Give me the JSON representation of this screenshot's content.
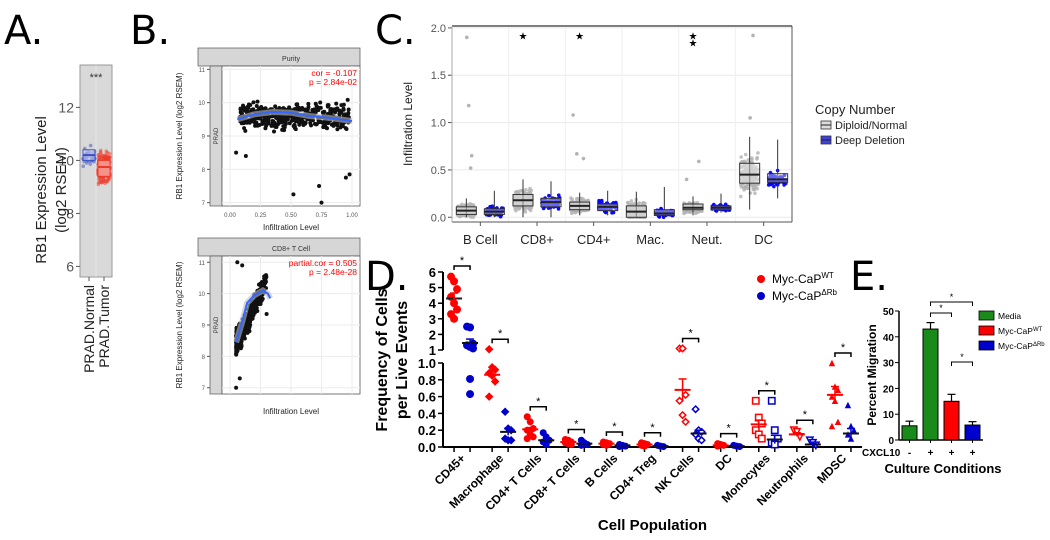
{
  "figure": {
    "panel_labels": [
      "A.",
      "B.",
      "C.",
      "D.",
      "E."
    ]
  },
  "chart_data": [
    {
      "id": "A",
      "type": "box",
      "title": "",
      "ylabel_lines": [
        "RB1 Expression Level",
        "(log2 RSEM)"
      ],
      "categories": [
        "PRAD.Normal",
        "PRAD.Tumor"
      ],
      "colors": [
        "#3b4fc4",
        "#ee3a2a"
      ],
      "ylim": [
        5.6,
        13.6
      ],
      "yticks": [
        6,
        8,
        10,
        12
      ],
      "significance": "***",
      "boxes": [
        {
          "name": "PRAD.Normal",
          "q1": 10.0,
          "median": 10.2,
          "q3": 10.4,
          "min": 9.4,
          "max": 10.9
        },
        {
          "name": "PRAD.Tumor",
          "q1": 9.4,
          "median": 9.75,
          "q3": 10.0,
          "min": 7.0,
          "max": 11.0
        }
      ],
      "background": "#d9d9d9"
    },
    {
      "id": "B-top",
      "type": "scatter",
      "strip_title": "Purity",
      "side_strip": "PRAD",
      "ylabel": "RB1 Expression Level (log2 RSEM)",
      "xlabel": "Infiltration Level",
      "xlim": [
        0,
        1
      ],
      "ylim": [
        6.9,
        11.1
      ],
      "xticks": [
        0.0,
        0.25,
        0.5,
        0.75,
        1.0
      ],
      "xtick_labels": [
        "0.00",
        "0.25",
        "0.50",
        "0.75",
        "1.00"
      ],
      "yticks": [
        7,
        8,
        9,
        10,
        11
      ],
      "annotation": [
        "cor = -0.107",
        "p = 2.84e-02"
      ],
      "annotation_color": "#ff0000",
      "fit_color": "#3366ff",
      "fit_curve": [
        [
          0.06,
          9.5
        ],
        [
          0.2,
          9.65
        ],
        [
          0.35,
          9.72
        ],
        [
          0.5,
          9.7
        ],
        [
          0.65,
          9.6
        ],
        [
          0.8,
          9.55
        ],
        [
          1.0,
          9.45
        ]
      ]
    },
    {
      "id": "B-bottom",
      "type": "scatter",
      "strip_title": "CD8+ T Cell",
      "side_strip": "PRAD",
      "ylabel": "RB1 Expression Level (log2 RSEM)",
      "xlabel": "Infiltration Level",
      "xlim": [
        0,
        1
      ],
      "ylim": [
        6.8,
        11.2
      ],
      "yticks": [
        7,
        8,
        9,
        10,
        11
      ],
      "annotation": [
        "partial.cor = 0.505",
        "p = 2.48e-28"
      ],
      "annotation_color": "#ff0000",
      "fit_color": "#3366ff",
      "fit_curve": [
        [
          0.05,
          8.45
        ],
        [
          0.1,
          9.1
        ],
        [
          0.14,
          9.7
        ],
        [
          0.2,
          9.95
        ],
        [
          0.27,
          10.1
        ],
        [
          0.31,
          10.0
        ],
        [
          0.33,
          9.85
        ]
      ]
    },
    {
      "id": "C",
      "type": "box",
      "ylabel": "Infiltration Level",
      "categories": [
        "B Cell",
        "CD8+",
        "CD4+",
        "Mac.",
        "Neut.",
        "DC"
      ],
      "ylim": [
        -0.05,
        2.02
      ],
      "yticks": [
        0.0,
        0.5,
        1.0,
        1.5,
        2.0
      ],
      "ytick_labels": [
        "0.0",
        "0.5",
        "1.0",
        "1.5",
        "2.0"
      ],
      "significance": [
        ".",
        "*",
        "*",
        "",
        "**",
        ""
      ],
      "legend": {
        "title": "Copy Number",
        "position": "right",
        "entries": [
          "Diploid/Normal",
          "Deep Deletion"
        ]
      },
      "series": [
        {
          "name": "Diploid/Normal",
          "color": "#b3b3b3",
          "boxes": [
            {
              "q1": 0.03,
              "median": 0.07,
              "q3": 0.11,
              "min": 0.0,
              "max": 0.2
            },
            {
              "q1": 0.12,
              "median": 0.18,
              "q3": 0.24,
              "min": 0.0,
              "max": 0.4
            },
            {
              "q1": 0.08,
              "median": 0.12,
              "q3": 0.16,
              "min": 0.02,
              "max": 0.26
            },
            {
              "q1": 0.0,
              "median": 0.06,
              "q3": 0.12,
              "min": 0.0,
              "max": 0.27
            },
            {
              "q1": 0.08,
              "median": 0.1,
              "q3": 0.14,
              "min": 0.02,
              "max": 0.22
            },
            {
              "q1": 0.36,
              "median": 0.45,
              "q3": 0.57,
              "min": 0.08,
              "max": 0.85
            }
          ],
          "outliers": [
            [
              0,
              1.18
            ],
            [
              0,
              0.65
            ],
            [
              0,
              0.52
            ],
            [
              2,
              1.08
            ],
            [
              2,
              0.67
            ],
            [
              2,
              0.62
            ],
            [
              4,
              0.59
            ],
            [
              4,
              0.4
            ],
            [
              5,
              1.05
            ],
            [
              5,
              1.92
            ],
            [
              0,
              1.9
            ]
          ]
        },
        {
          "name": "Deep Deletion",
          "color": "#0000ff",
          "boxes": [
            {
              "q1": 0.03,
              "median": 0.06,
              "q3": 0.09,
              "min": 0.0,
              "max": 0.28
            },
            {
              "q1": 0.11,
              "median": 0.16,
              "q3": 0.2,
              "min": 0.0,
              "max": 0.38
            },
            {
              "q1": 0.07,
              "median": 0.11,
              "q3": 0.14,
              "min": 0.02,
              "max": 0.28
            },
            {
              "q1": 0.02,
              "median": 0.04,
              "q3": 0.08,
              "min": 0.0,
              "max": 0.32
            },
            {
              "q1": 0.08,
              "median": 0.1,
              "q3": 0.12,
              "min": 0.05,
              "max": 0.25
            },
            {
              "q1": 0.37,
              "median": 0.4,
              "q3": 0.46,
              "min": 0.2,
              "max": 0.82
            }
          ]
        }
      ]
    },
    {
      "id": "D",
      "type": "scatter",
      "ylabel_lines": [
        "Frequency of Cells",
        "per Live Events"
      ],
      "xlabel": "Cell Population",
      "categories": [
        "CD45+",
        "Macrophage",
        "CD4+ T Cells",
        "CD8+ T Cells",
        "B Cells",
        "CD4+ Treg",
        "NK Cells",
        "DC",
        "Monocytes",
        "Neutrophils",
        "MDSC"
      ],
      "y_upper": {
        "range": [
          1,
          6
        ],
        "ticks": [
          1,
          2,
          3,
          4,
          5,
          6
        ]
      },
      "y_lower": {
        "range": [
          0,
          1.0
        ],
        "ticks": [
          0.0,
          0.2,
          0.4,
          0.6,
          0.8,
          1.0
        ],
        "tick_labels": [
          "0.0",
          "0.2",
          "0.4",
          "0.6",
          "0.8",
          "1.0"
        ]
      },
      "significance": [
        "*",
        "*",
        "*",
        "*",
        "*",
        "*",
        "*",
        "*",
        "*",
        "*",
        "*"
      ],
      "legend": {
        "position": "top-right",
        "entries": [
          {
            "label": "Myc-CaP",
            "sup": "WT",
            "color": "#ff0000"
          },
          {
            "label": "Myc-CaP",
            "sup": "ΔRb",
            "color": "#0000cc"
          }
        ]
      },
      "series": [
        {
          "name": "Myc-CaP WT",
          "color": "#ff0000",
          "means": [
            4.3,
            0.86,
            0.21,
            0.06,
            0.04,
            0.03,
            0.68,
            0.02,
            0.27,
            0.15,
            0.62
          ],
          "sems": [
            0.35,
            0.05,
            0.02,
            0.01,
            0.01,
            0.01,
            0.13,
            0.01,
            0.05,
            0.02,
            0.1
          ],
          "points": [
            [
              5.7,
              5.4,
              4.9,
              4.4,
              4.0,
              3.6,
              3.3,
              3.0
            ],
            [
              1.05,
              0.95,
              0.92,
              0.88,
              0.85,
              0.78,
              0.6
            ],
            [
              0.36,
              0.3,
              0.22,
              0.2,
              0.15,
              0.12,
              0.1
            ],
            [
              0.09,
              0.08,
              0.06,
              0.05,
              0.04,
              0.03
            ],
            [
              0.06,
              0.05,
              0.04,
              0.03,
              0.02
            ],
            [
              0.05,
              0.04,
              0.03,
              0.02,
              0.01
            ],
            [
              1.1,
              1.1,
              0.62,
              0.55,
              0.38,
              0.3
            ],
            [
              0.04,
              0.03,
              0.02,
              0.01
            ],
            [
              0.55,
              0.35,
              0.28,
              0.2,
              0.15,
              0.1
            ],
            [
              0.2,
              0.18,
              0.12
            ],
            [
              1.0,
              0.72,
              0.68,
              0.6,
              0.55,
              0.3,
              0.25
            ]
          ]
        },
        {
          "name": "Myc-CaP ΔRb",
          "color": "#0000cc",
          "means": [
            1.45,
            0.18,
            0.08,
            0.04,
            0.02,
            0.01,
            0.16,
            0.01,
            0.09,
            0.03,
            0.16
          ],
          "sems": [
            0.25,
            0.04,
            0.01,
            0.01,
            0.005,
            0.005,
            0.04,
            0.005,
            0.05,
            0.01,
            0.06
          ],
          "points": [
            [
              2.5,
              2.45,
              1.4,
              1.3,
              1.2,
              1.1
            ],
            [
              0.42,
              0.22,
              0.2,
              0.1,
              0.08,
              0.08
            ],
            [
              0.17,
              0.12,
              0.08,
              0.06,
              0.03
            ],
            [
              0.08,
              0.05,
              0.03,
              0.02
            ],
            [
              0.03,
              0.02,
              0.01,
              0.005
            ],
            [
              0.02,
              0.01,
              0.005
            ],
            [
              0.45,
              0.2,
              0.18,
              0.15,
              0.1,
              0.08
            ],
            [
              0.02,
              0.01,
              0.005
            ],
            [
              0.55,
              0.2,
              0.1,
              0.05,
              0.03
            ],
            [
              0.08,
              0.05,
              0.02
            ],
            [
              0.5,
              0.25,
              0.2,
              0.15,
              0.1
            ]
          ],
          "outliers_upper_points": [
            0.81,
            0.63
          ]
        }
      ]
    },
    {
      "id": "E",
      "type": "bar",
      "ylabel": "Percent Migration",
      "xlabel": "Culture Conditions",
      "row_label": "CXCL10",
      "row_values": [
        "-",
        "+",
        "+",
        "+"
      ],
      "ylim": [
        0,
        50
      ],
      "yticks": [
        0,
        10,
        20,
        30,
        40,
        50
      ],
      "values": [
        5.5,
        43.0,
        15.0,
        5.8
      ],
      "errors": [
        1.8,
        2.5,
        2.7,
        1.3
      ],
      "bar_colors": [
        "#1a8a1a",
        "#1a8a1a",
        "#ff0000",
        "#0000cc"
      ],
      "significance": [
        {
          "from": 1,
          "to": 2,
          "label": "*"
        },
        {
          "from": 1,
          "to": 3,
          "label": "*"
        },
        {
          "from": 2,
          "to": 3,
          "label": "*"
        }
      ],
      "legend": {
        "position": "top-right",
        "entries": [
          {
            "label": "Media",
            "sup": "",
            "color": "#1a8a1a"
          },
          {
            "label": "Myc-CaP",
            "sup": "WT",
            "color": "#ff0000"
          },
          {
            "label": "Myc-CaP",
            "sup": "ΔRb",
            "color": "#0000cc"
          }
        ]
      }
    }
  ]
}
